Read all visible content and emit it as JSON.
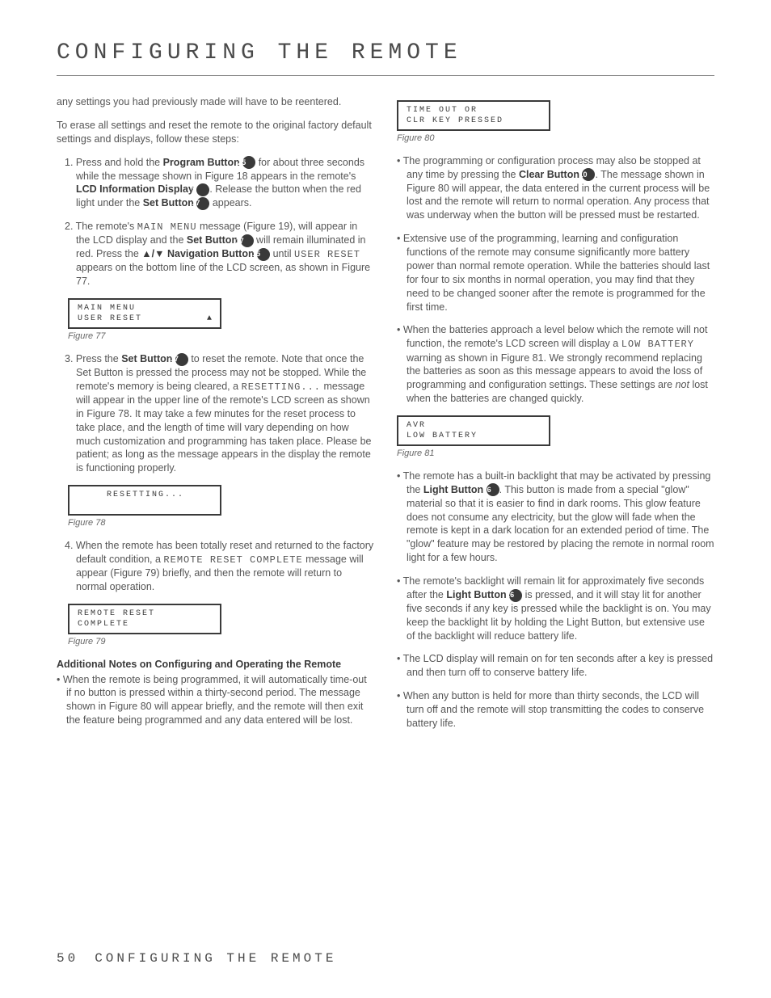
{
  "page": {
    "heading": "CONFIGURING THE REMOTE",
    "footer_page": "50",
    "footer_title": "CONFIGURING THE REMOTE"
  },
  "icons": {
    "b3": "3",
    "b10": "10",
    "b15": "15",
    "b17": "17",
    "b25": "25",
    "b26": "26"
  },
  "left": {
    "intro1": "any settings you had previously made will have to be reentered.",
    "intro2": "To erase all settings and reset the remote to the original factory default settings and displays, follow these steps:",
    "step1_a": "1. Press and hold the ",
    "step1_b": "Program Button ",
    "step1_c": " for about three seconds while the message shown in Figure 18 appears in the remote's ",
    "step1_d": "LCD Information Display ",
    "step1_e": ". Release the button when the red light under the ",
    "step1_f": "Set Button ",
    "step1_g": " appears.",
    "step2_a": "2. The remote's ",
    "step2_b": "MAIN MENU",
    "step2_c": " message (Figure 19), will appear in the LCD display and the ",
    "step2_d": "Set Button ",
    "step2_e": " will remain illuminated in red. Press the ",
    "step2_f": "▲/▼ Navigation Button ",
    "step2_g": " until ",
    "step2_h": "USER RESET",
    "step2_i": " appears on the bottom line of the LCD screen, as shown in Figure 77.",
    "fig77_line1": "MAIN MENU",
    "fig77_line2": "USER RESET",
    "fig77_caption": "Figure 77",
    "step3_a": "3. Press the ",
    "step3_b": "Set Button ",
    "step3_c": " to reset the remote. Note that once the Set Button is pressed the process may not be stopped. While the remote's memory is being cleared, a ",
    "step3_d": "RESETTING...",
    "step3_e": " message will appear in the upper line of the remote's LCD screen as shown in Figure 78. It may take a few minutes for the reset process to take place, and the length of time will vary depending on how much customization and programming has taken place. Please be patient; as long as the message appears in the display the remote is functioning properly.",
    "fig78_line1": "RESETTING...",
    "fig78_caption": "Figure 78",
    "step4_a": "4. When the remote has been totally reset and returned to the factory default condition, a ",
    "step4_b": "REMOTE RESET COMPLETE",
    "step4_c": " message will appear (Figure 79) briefly, and then the remote will return to normal operation.",
    "fig79_line1": "REMOTE RESET",
    "fig79_line2": "COMPLETE",
    "fig79_caption": "Figure 79",
    "notes_head": "Additional Notes on Configuring and Operating the Remote",
    "note1": "When the remote is being programmed, it will automatically time-out if no button is pressed within a thirty-second period. The message shown in Figure 80 will appear briefly, and the remote will then exit the feature being programmed and any data entered will be lost."
  },
  "right": {
    "fig80_line1": "TIME OUT OR",
    "fig80_line2": "CLR KEY PRESSED",
    "fig80_caption": "Figure 80",
    "b1_a": "The programming or configuration process may also be stopped at any time by pressing the ",
    "b1_b": "Clear Button ",
    "b1_c": ". The message shown in Figure 80 will appear, the data entered in the current process will be lost and the remote will return to normal operation. Any process that was underway when the button will be pressed must be restarted.",
    "b2": "Extensive use of the programming, learning and configuration functions of the remote may consume significantly more battery power than normal remote operation. While the batteries should last for four to six months in normal operation, you may find that they need to be changed sooner after the remote is programmed for the first time.",
    "b3_a": "When the batteries approach a level below which the remote will not function, the remote's LCD screen will display a ",
    "b3_b": "LOW BATTERY",
    "b3_c": " warning as shown in Figure 81. We strongly recommend replacing the batteries as soon as this message appears to avoid the loss of programming and configuration settings. These settings are ",
    "b3_d": "not",
    "b3_e": " lost when the batteries are changed quickly.",
    "fig81_line1": "AVR",
    "fig81_line2": "LOW BATTERY",
    "fig81_caption": "Figure 81",
    "b4_a": "The remote has a built-in backlight that may be activated by pressing the ",
    "b4_b": "Light Button ",
    "b4_c": ". This button is made from a special \"glow\" material so that it is easier to find in dark rooms. This glow feature does not consume any electricity, but the glow will fade when the remote is kept in a dark location for an extended period of time. The \"glow\" feature may be restored by placing the remote in normal room light for a few hours.",
    "b5_a": "The remote's backlight will remain lit for approximately five seconds after the ",
    "b5_b": "Light Button ",
    "b5_c": " is pressed, and it will stay lit for another five seconds if any key is pressed while the backlight is on. You may keep the backlight lit by holding the Light Button, but extensive use of the backlight will reduce battery life.",
    "b6": "The LCD display will remain on for ten seconds after a key is pressed and then turn off to conserve battery life.",
    "b7": "When any button is held for more than thirty seconds, the LCD will turn off and the remote will stop transmitting the codes to conserve battery life."
  }
}
